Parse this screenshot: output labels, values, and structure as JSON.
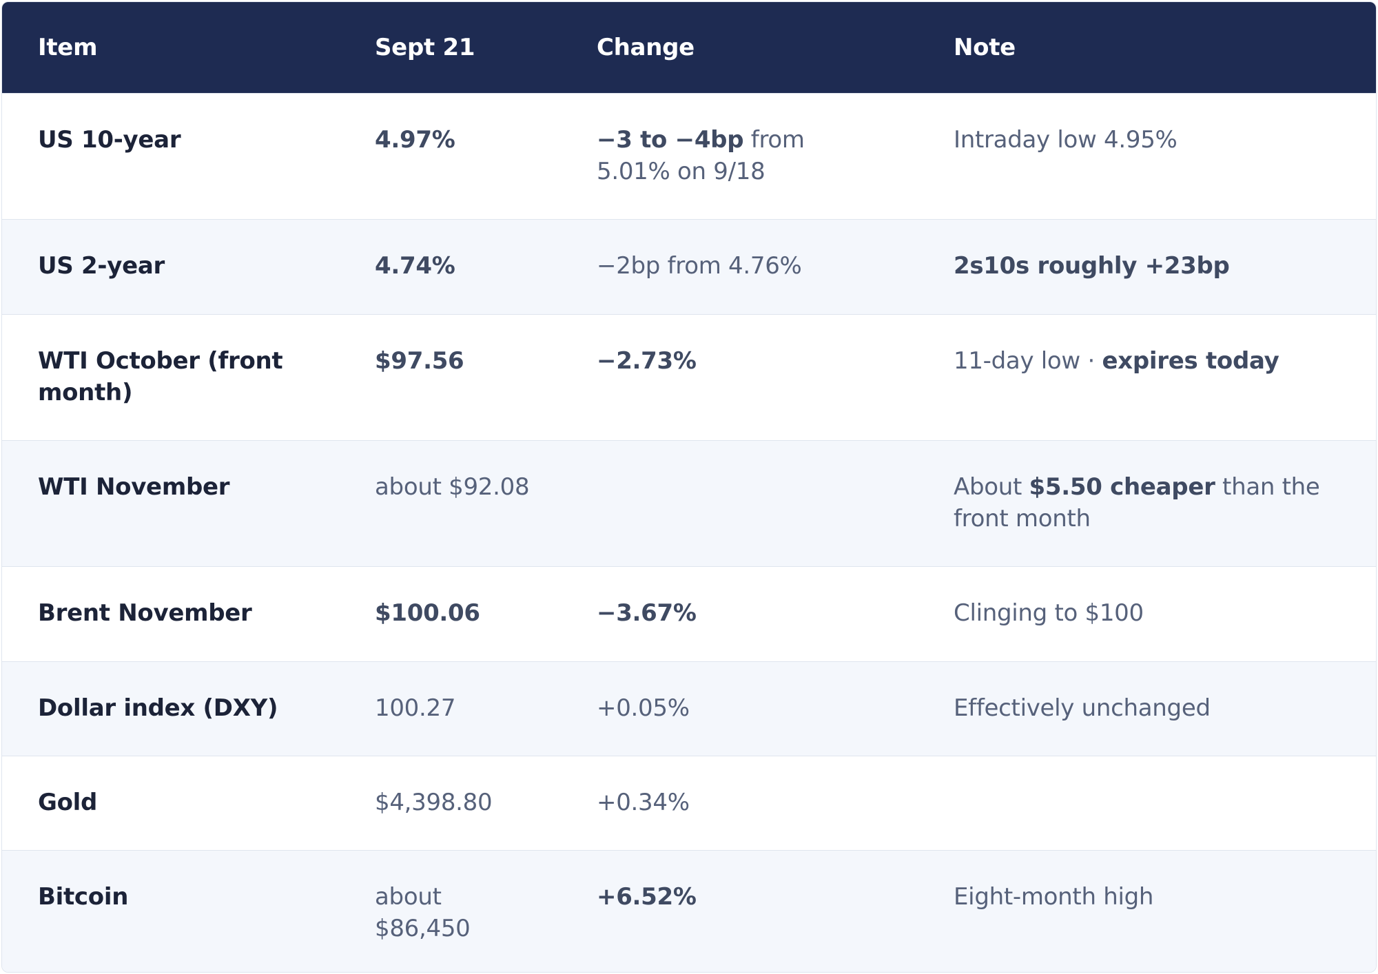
{
  "headers": {
    "item": "Item",
    "date": "Sept 21",
    "change": "Change",
    "note": "Note"
  },
  "rows": [
    {
      "item": "US 10-year",
      "value": "4.97%",
      "change_bold": "−3 to −4bp",
      "change_rest": " from 5.01% on 9/18",
      "note": "Intraday low 4.95%"
    },
    {
      "item": "US 2-year",
      "value": "4.74%",
      "change": "−2bp from 4.76%",
      "note": "2s10s roughly +23bp"
    },
    {
      "item": "WTI October (front month)",
      "value": "$97.56",
      "change": "−2.73%",
      "note_plain": "11-day low · ",
      "note_bold": "expires today"
    },
    {
      "item": "WTI November",
      "value": "about $92.08",
      "change": "",
      "note_pre": "About ",
      "note_bold": "$5.50 cheaper",
      "note_post": " than the front month"
    },
    {
      "item": "Brent November",
      "value": "$100.06",
      "change": "−3.67%",
      "note": "Clinging to $100"
    },
    {
      "item": "Dollar index (DXY)",
      "value": "100.27",
      "change": "+0.05%",
      "note": "Effectively unchanged"
    },
    {
      "item": "Gold",
      "value": "$4,398.80",
      "change": "+0.34%",
      "note": ""
    },
    {
      "item": "Bitcoin",
      "value": "about $86,450",
      "change": "+6.52%",
      "note": "Eight-month high"
    }
  ]
}
